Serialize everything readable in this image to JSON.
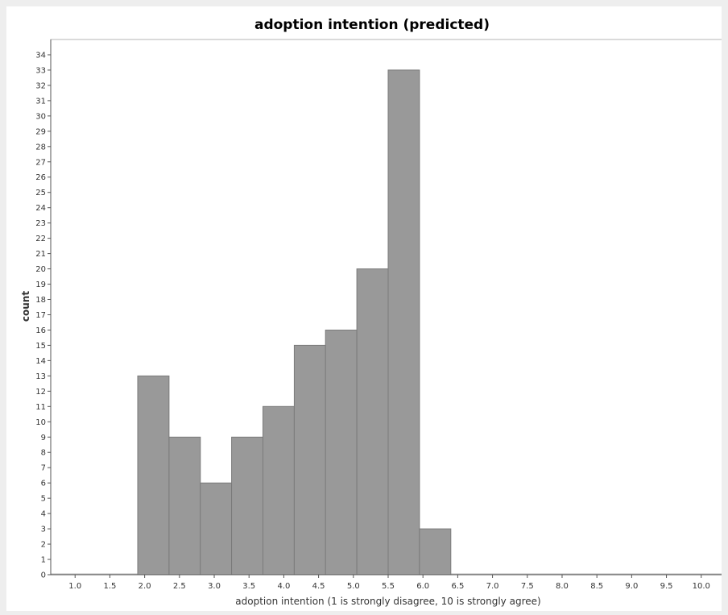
{
  "chart_data": {
    "type": "bar",
    "title": "adoption intention (predicted)",
    "xlabel": "adoption intention (1 is strongly disagree, 10 is strongly agree)",
    "ylabel": "count",
    "xlim": [
      0.65,
      10.35
    ],
    "ylim": [
      0,
      35
    ],
    "x_ticks": [
      "1.0",
      "1.5",
      "2.0",
      "2.5",
      "3.0",
      "3.5",
      "4.0",
      "4.5",
      "5.0",
      "5.5",
      "6.0",
      "6.5",
      "7.0",
      "7.5",
      "8.0",
      "8.5",
      "9.0",
      "9.5",
      "10.0"
    ],
    "y_ticks": [
      "0",
      "1",
      "2",
      "3",
      "4",
      "5",
      "6",
      "7",
      "8",
      "9",
      "10",
      "11",
      "12",
      "13",
      "14",
      "15",
      "16",
      "17",
      "18",
      "19",
      "20",
      "21",
      "22",
      "23",
      "24",
      "25",
      "26",
      "27",
      "28",
      "29",
      "30",
      "31",
      "32",
      "33",
      "34"
    ],
    "bins": [
      {
        "start": 1.9,
        "end": 2.35,
        "count": 13
      },
      {
        "start": 2.35,
        "end": 2.8,
        "count": 9
      },
      {
        "start": 2.8,
        "end": 3.25,
        "count": 6
      },
      {
        "start": 3.25,
        "end": 3.7,
        "count": 9
      },
      {
        "start": 3.7,
        "end": 4.15,
        "count": 11
      },
      {
        "start": 4.15,
        "end": 4.6,
        "count": 15
      },
      {
        "start": 4.6,
        "end": 5.05,
        "count": 16
      },
      {
        "start": 5.05,
        "end": 5.5,
        "count": 20
      },
      {
        "start": 5.5,
        "end": 5.95,
        "count": 33
      },
      {
        "start": 5.95,
        "end": 6.4,
        "count": 3
      }
    ],
    "bar_color": "#999999",
    "bar_edge_color": "#7a7a7a",
    "grid": false,
    "legend": false
  }
}
